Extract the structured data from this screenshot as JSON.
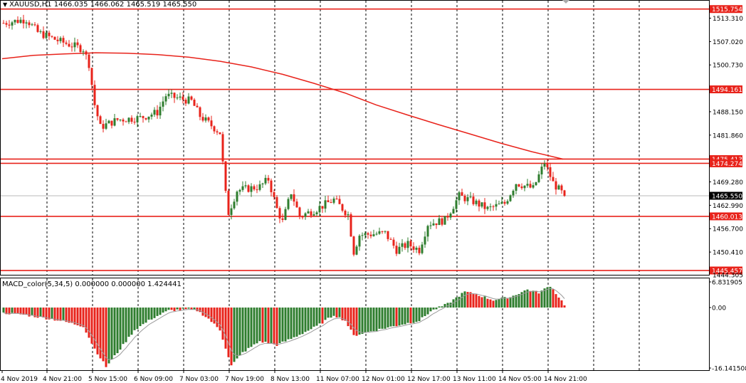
{
  "chart_header": {
    "title": "XAUUSD,H1",
    "ohlc": "1466.035 1466.062 1465.519 1465.550"
  },
  "macd_header": {
    "title": "MACD_color(5,34,5) 0.000000 0.000000 1.424441"
  },
  "colors": {
    "bull": "#2e7d2e",
    "bear": "#e8231b",
    "level_line": "#e8231b",
    "ma_line": "#e8231b",
    "price_tag_bg": "#e8231b",
    "current_price_bg": "#000000",
    "grid": "#000000"
  },
  "chart_data": [
    {
      "type": "line",
      "title": "XAUUSD,H1",
      "price_axis_labels": [
        "1513.310",
        "1507.020",
        "1500.730",
        "1488.150",
        "1481.860",
        "1469.280",
        "1462.990",
        "1456.700",
        "1450.410"
      ],
      "ylim": [
        1444.3,
        1518.0
      ],
      "horizontal_levels": [
        {
          "label": "1515.754",
          "value": 1515.754
        },
        {
          "label": "1494.161",
          "value": 1494.161
        },
        {
          "label": "1475.413",
          "value": 1475.413
        },
        {
          "label": "1474.274",
          "value": 1474.274
        },
        {
          "label": "1460.013",
          "value": 1460.013
        },
        {
          "label": "1445.457",
          "value": 1445.457
        }
      ],
      "partial_axis_label": "1444.305",
      "current_price": {
        "label": "1465.550",
        "value": 1465.55
      },
      "time_labels": [
        "4 Nov 2019",
        "4 Nov 21:00",
        "5 Nov 15:00",
        "6 Nov 09:00",
        "7 Nov 03:00",
        "7 Nov 19:00",
        "8 Nov 13:00",
        "11 Nov 07:00",
        "12 Nov 01:00",
        "12 Nov 17:00",
        "13 Nov 11:00",
        "14 Nov 05:00",
        "14 Nov 21:00"
      ],
      "moving_average": [
        1502.4,
        1503.3,
        1503.7,
        1504.0,
        1503.9,
        1503.5,
        1502.8,
        1501.7,
        1500.2,
        1498.2,
        1495.8,
        1493.2,
        1490.0,
        1487.3,
        1484.7,
        1482.2,
        1479.7,
        1477.4,
        1475.4
      ],
      "price_keypoints": [
        {
          "bar": 0,
          "price": 1512.0
        },
        {
          "bar": 8,
          "price": 1513.0
        },
        {
          "bar": 12,
          "price": 1509.5
        },
        {
          "bar": 20,
          "price": 1507.0
        },
        {
          "bar": 28,
          "price": 1505.0
        },
        {
          "bar": 30,
          "price": 1501.0
        },
        {
          "bar": 32,
          "price": 1490.0
        },
        {
          "bar": 34,
          "price": 1484.0
        },
        {
          "bar": 40,
          "price": 1486.0
        },
        {
          "bar": 48,
          "price": 1486.5
        },
        {
          "bar": 54,
          "price": 1488.0
        },
        {
          "bar": 57,
          "price": 1492.5
        },
        {
          "bar": 66,
          "price": 1491.0
        },
        {
          "bar": 69,
          "price": 1487.0
        },
        {
          "bar": 76,
          "price": 1482.5
        },
        {
          "bar": 78,
          "price": 1466.0
        },
        {
          "bar": 79,
          "price": 1461.0
        },
        {
          "bar": 82,
          "price": 1467.0
        },
        {
          "bar": 90,
          "price": 1468.0
        },
        {
          "bar": 93,
          "price": 1470.0
        },
        {
          "bar": 96,
          "price": 1462.0
        },
        {
          "bar": 98,
          "price": 1458.5
        },
        {
          "bar": 101,
          "price": 1466.5
        },
        {
          "bar": 104,
          "price": 1460.0
        },
        {
          "bar": 110,
          "price": 1462.0
        },
        {
          "bar": 116,
          "price": 1464.5
        },
        {
          "bar": 121,
          "price": 1460.5
        },
        {
          "bar": 123,
          "price": 1450.5
        },
        {
          "bar": 125,
          "price": 1455.0
        },
        {
          "bar": 134,
          "price": 1455.5
        },
        {
          "bar": 138,
          "price": 1451.0
        },
        {
          "bar": 142,
          "price": 1452.5
        },
        {
          "bar": 146,
          "price": 1451.0
        },
        {
          "bar": 149,
          "price": 1458.0
        },
        {
          "bar": 155,
          "price": 1459.0
        },
        {
          "bar": 160,
          "price": 1465.5
        },
        {
          "bar": 165,
          "price": 1464.0
        },
        {
          "bar": 170,
          "price": 1462.0
        },
        {
          "bar": 176,
          "price": 1463.5
        },
        {
          "bar": 180,
          "price": 1469.0
        },
        {
          "bar": 186,
          "price": 1467.5
        },
        {
          "bar": 190,
          "price": 1474.5
        },
        {
          "bar": 193,
          "price": 1469.0
        },
        {
          "bar": 197,
          "price": 1465.5
        }
      ]
    },
    {
      "type": "bar",
      "title": "MACD_color(5,34,5)",
      "axis_labels": [
        "6.831905",
        "0.00",
        "-16.141508"
      ],
      "ylim": [
        -16.141508,
        6.831905
      ],
      "histogram_keypoints": [
        {
          "bar": 0,
          "value": -1.5
        },
        {
          "bar": 6,
          "value": -1.8
        },
        {
          "bar": 12,
          "value": -2.5
        },
        {
          "bar": 20,
          "value": -3.5
        },
        {
          "bar": 28,
          "value": -5.0
        },
        {
          "bar": 32,
          "value": -11.0
        },
        {
          "bar": 36,
          "value": -15.8
        },
        {
          "bar": 40,
          "value": -12.0
        },
        {
          "bar": 46,
          "value": -6.0
        },
        {
          "bar": 52,
          "value": -3.0
        },
        {
          "bar": 58,
          "value": -0.8
        },
        {
          "bar": 64,
          "value": -0.5
        },
        {
          "bar": 68,
          "value": -0.8
        },
        {
          "bar": 72,
          "value": -3.0
        },
        {
          "bar": 76,
          "value": -6.0
        },
        {
          "bar": 80,
          "value": -15.5
        },
        {
          "bar": 84,
          "value": -12.0
        },
        {
          "bar": 90,
          "value": -9.0
        },
        {
          "bar": 96,
          "value": -10.0
        },
        {
          "bar": 102,
          "value": -8.0
        },
        {
          "bar": 110,
          "value": -5.0
        },
        {
          "bar": 116,
          "value": -2.0
        },
        {
          "bar": 120,
          "value": -3.5
        },
        {
          "bar": 123,
          "value": -7.5
        },
        {
          "bar": 128,
          "value": -6.5
        },
        {
          "bar": 134,
          "value": -5.5
        },
        {
          "bar": 140,
          "value": -4.5
        },
        {
          "bar": 146,
          "value": -3.5
        },
        {
          "bar": 150,
          "value": -1.0
        },
        {
          "bar": 156,
          "value": 1.0
        },
        {
          "bar": 162,
          "value": 4.2
        },
        {
          "bar": 166,
          "value": 3.5
        },
        {
          "bar": 172,
          "value": 2.0
        },
        {
          "bar": 178,
          "value": 2.8
        },
        {
          "bar": 184,
          "value": 4.8
        },
        {
          "bar": 188,
          "value": 4.0
        },
        {
          "bar": 192,
          "value": 5.8
        },
        {
          "bar": 197,
          "value": 0.8
        }
      ]
    }
  ]
}
